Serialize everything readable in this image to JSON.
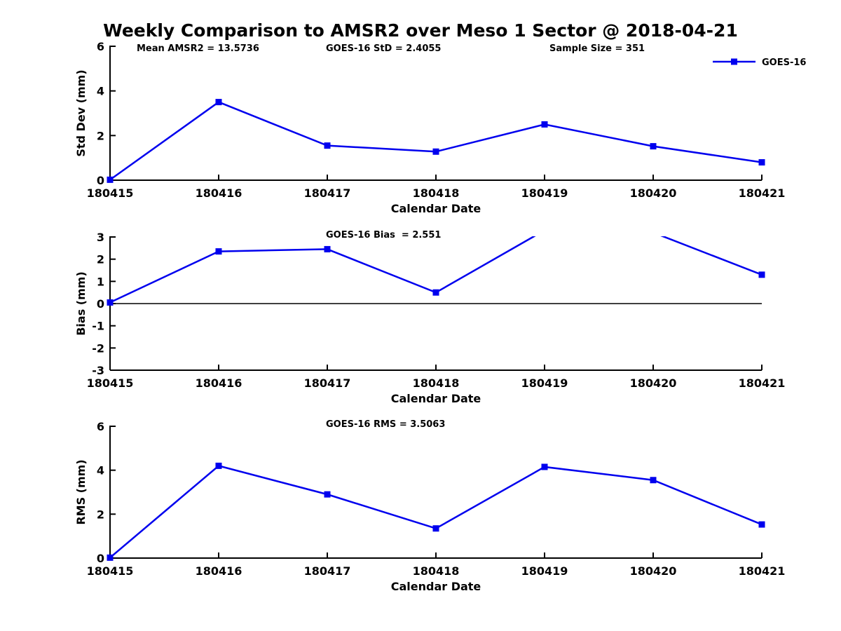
{
  "title": "Weekly Comparison to AMSR2 over Meso 1 Sector @ 2018-04-21",
  "legend": {
    "label": "GOES-16"
  },
  "colors": {
    "series": "#0000EE",
    "axis": "#000000",
    "background": "#FFFFFF"
  },
  "chart_data": [
    {
      "id": "std-dev",
      "type": "line",
      "annotations": [
        "Mean AMSR2 = 13.5736",
        "GOES-16 StD = 2.4055",
        "Sample Size = 351"
      ],
      "categories": [
        "180415",
        "180416",
        "180417",
        "180418",
        "180419",
        "180420",
        "180421"
      ],
      "series": [
        {
          "name": "GOES-16",
          "values": [
            0.02,
            3.5,
            1.55,
            1.28,
            2.5,
            1.52,
            0.8
          ]
        }
      ],
      "xlabel": "Calendar Date",
      "ylabel": "Std Dev (mm)",
      "ylim": [
        0,
        6
      ],
      "yticks": [
        0,
        2,
        4,
        6
      ],
      "zero_line": false,
      "legend_position": "northeast",
      "grid": false
    },
    {
      "id": "bias",
      "type": "line",
      "annotations": [
        "GOES-16 Bias  = 2.551"
      ],
      "categories": [
        "180415",
        "180416",
        "180417",
        "180418",
        "180419",
        "180420",
        "180421"
      ],
      "series": [
        {
          "name": "GOES-16",
          "values": [
            0.05,
            2.35,
            2.45,
            0.5,
            3.3,
            3.2,
            1.3
          ]
        }
      ],
      "xlabel": "Calendar Date",
      "ylabel": "Bias (mm)",
      "ylim": [
        -3,
        3
      ],
      "yticks": [
        -3,
        -2,
        -1,
        0,
        1,
        2,
        3
      ],
      "zero_line": true,
      "grid": false
    },
    {
      "id": "rms",
      "type": "line",
      "annotations": [
        "GOES-16 RMS = 3.5063"
      ],
      "categories": [
        "180415",
        "180416",
        "180417",
        "180418",
        "180419",
        "180420",
        "180421"
      ],
      "series": [
        {
          "name": "GOES-16",
          "values": [
            0.02,
            4.2,
            2.9,
            1.35,
            4.15,
            3.55,
            1.53
          ]
        }
      ],
      "xlabel": "Calendar Date",
      "ylabel": "RMS (mm)",
      "ylim": [
        0,
        6
      ],
      "yticks": [
        0,
        2,
        4,
        6
      ],
      "zero_line": false,
      "grid": false
    }
  ]
}
